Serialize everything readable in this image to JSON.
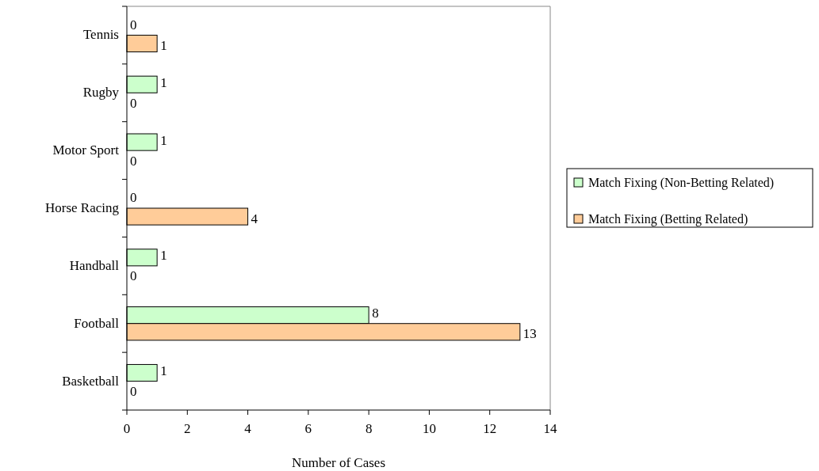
{
  "chart_data": {
    "type": "bar",
    "orientation": "horizontal",
    "xlabel": "Number of Cases",
    "categories": [
      "Tennis",
      "Rugby",
      "Motor Sport",
      "Horse Racing",
      "Handball",
      "Football",
      "Basketball"
    ],
    "series": [
      {
        "name": "Match Fixing (Non-Betting Related)",
        "color": "#ccffcc",
        "values": [
          0,
          1,
          1,
          0,
          1,
          8,
          1
        ]
      },
      {
        "name": "Match Fixing (Betting Related)",
        "color": "#ffcc99",
        "values": [
          1,
          0,
          0,
          4,
          0,
          13,
          0
        ]
      }
    ],
    "xlim": [
      0,
      14
    ],
    "xticks": [
      0,
      2,
      4,
      6,
      8,
      10,
      12,
      14
    ],
    "data_labels": true,
    "legend": "right",
    "grid": false
  }
}
